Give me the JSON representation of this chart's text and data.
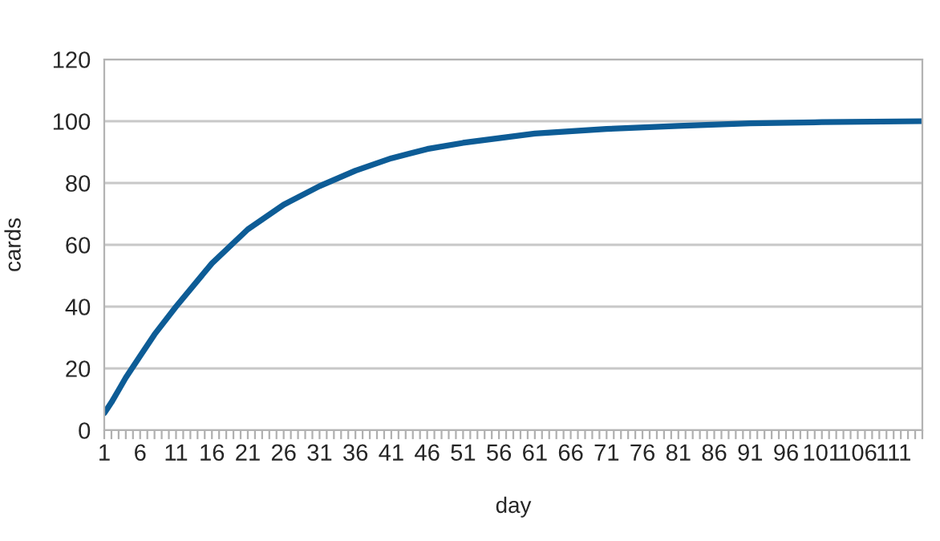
{
  "chart_data": {
    "type": "line",
    "xlabel": "day",
    "ylabel": "cards",
    "series": [
      {
        "color": "#0d5c96",
        "x": [
          1,
          2,
          3,
          4,
          6,
          8,
          11,
          16,
          21,
          26,
          31,
          36,
          41,
          46,
          51,
          56,
          61,
          71,
          81,
          91,
          101,
          115
        ],
        "values": [
          5.5,
          9,
          13,
          17,
          24,
          31,
          40,
          54,
          65,
          73,
          79,
          84,
          88,
          91,
          93,
          94.5,
          96,
          97.5,
          98.5,
          99.3,
          99.7,
          100
        ]
      }
    ],
    "xlim": [
      1,
      115
    ],
    "xticks": [
      1,
      {
        "value": 2,
        "label": null
      },
      {
        "value": 3,
        "label": null
      },
      {
        "value": 4,
        "label": null
      },
      {
        "value": 5,
        "label": null
      },
      6,
      {
        "value": 7,
        "label": null
      },
      {
        "value": 8,
        "label": null
      },
      {
        "value": 9,
        "label": null
      },
      {
        "value": 10,
        "label": null
      },
      11,
      {
        "value": 12,
        "label": null
      },
      {
        "value": 13,
        "label": null
      },
      {
        "value": 14,
        "label": null
      },
      {
        "value": 15,
        "label": null
      },
      16,
      {
        "value": 17,
        "label": null
      },
      {
        "value": 18,
        "label": null
      },
      {
        "value": 19,
        "label": null
      },
      {
        "value": 20,
        "label": null
      },
      21,
      {
        "value": 22,
        "label": null
      },
      {
        "value": 23,
        "label": null
      },
      {
        "value": 24,
        "label": null
      },
      {
        "value": 25,
        "label": null
      },
      26,
      {
        "value": 27,
        "label": null
      },
      {
        "value": 28,
        "label": null
      },
      {
        "value": 29,
        "label": null
      },
      {
        "value": 30,
        "label": null
      },
      31,
      {
        "value": 32,
        "label": null
      },
      {
        "value": 33,
        "label": null
      },
      {
        "value": 34,
        "label": null
      },
      {
        "value": 35,
        "label": null
      },
      36,
      {
        "value": 37,
        "label": null
      },
      {
        "value": 38,
        "label": null
      },
      {
        "value": 39,
        "label": null
      },
      {
        "value": 40,
        "label": null
      },
      41,
      {
        "value": 42,
        "label": null
      },
      {
        "value": 43,
        "label": null
      },
      {
        "value": 44,
        "label": null
      },
      {
        "value": 45,
        "label": null
      },
      46,
      {
        "value": 47,
        "label": null
      },
      {
        "value": 48,
        "label": null
      },
      {
        "value": 49,
        "label": null
      },
      {
        "value": 50,
        "label": null
      },
      51,
      {
        "value": 52,
        "label": null
      },
      {
        "value": 53,
        "label": null
      },
      {
        "value": 54,
        "label": null
      },
      {
        "value": 55,
        "label": null
      },
      56,
      {
        "value": 57,
        "label": null
      },
      {
        "value": 58,
        "label": null
      },
      {
        "value": 59,
        "label": null
      },
      {
        "value": 60,
        "label": null
      },
      61,
      {
        "value": 62,
        "label": null
      },
      {
        "value": 63,
        "label": null
      },
      {
        "value": 64,
        "label": null
      },
      {
        "value": 65,
        "label": null
      },
      66,
      {
        "value": 67,
        "label": null
      },
      {
        "value": 68,
        "label": null
      },
      {
        "value": 69,
        "label": null
      },
      {
        "value": 70,
        "label": null
      },
      71,
      {
        "value": 72,
        "label": null
      },
      {
        "value": 73,
        "label": null
      },
      {
        "value": 74,
        "label": null
      },
      {
        "value": 75,
        "label": null
      },
      76,
      {
        "value": 77,
        "label": null
      },
      {
        "value": 78,
        "label": null
      },
      {
        "value": 79,
        "label": null
      },
      {
        "value": 80,
        "label": null
      },
      81,
      {
        "value": 82,
        "label": null
      },
      {
        "value": 83,
        "label": null
      },
      {
        "value": 84,
        "label": null
      },
      {
        "value": 85,
        "label": null
      },
      86,
      {
        "value": 87,
        "label": null
      },
      {
        "value": 88,
        "label": null
      },
      {
        "value": 89,
        "label": null
      },
      {
        "value": 90,
        "label": null
      },
      91,
      {
        "value": 92,
        "label": null
      },
      {
        "value": 93,
        "label": null
      },
      {
        "value": 94,
        "label": null
      },
      {
        "value": 95,
        "label": null
      },
      96,
      {
        "value": 97,
        "label": null
      },
      {
        "value": 98,
        "label": null
      },
      {
        "value": 99,
        "label": null
      },
      {
        "value": 100,
        "label": null
      },
      101,
      {
        "value": 102,
        "label": null
      },
      {
        "value": 103,
        "label": null
      },
      {
        "value": 104,
        "label": null
      },
      {
        "value": 105,
        "label": null
      },
      106,
      {
        "value": 107,
        "label": null
      },
      {
        "value": 108,
        "label": null
      },
      {
        "value": 109,
        "label": null
      },
      {
        "value": 110,
        "label": null
      },
      111,
      {
        "value": 112,
        "label": null
      },
      {
        "value": 113,
        "label": null
      },
      {
        "value": 114,
        "label": null
      },
      {
        "value": 115,
        "label": null
      }
    ],
    "ylim": [
      0,
      120
    ],
    "yticks": [
      0,
      20,
      40,
      60,
      80,
      100,
      120
    ],
    "grid": "y",
    "marker": "none",
    "line_style": "solid"
  }
}
